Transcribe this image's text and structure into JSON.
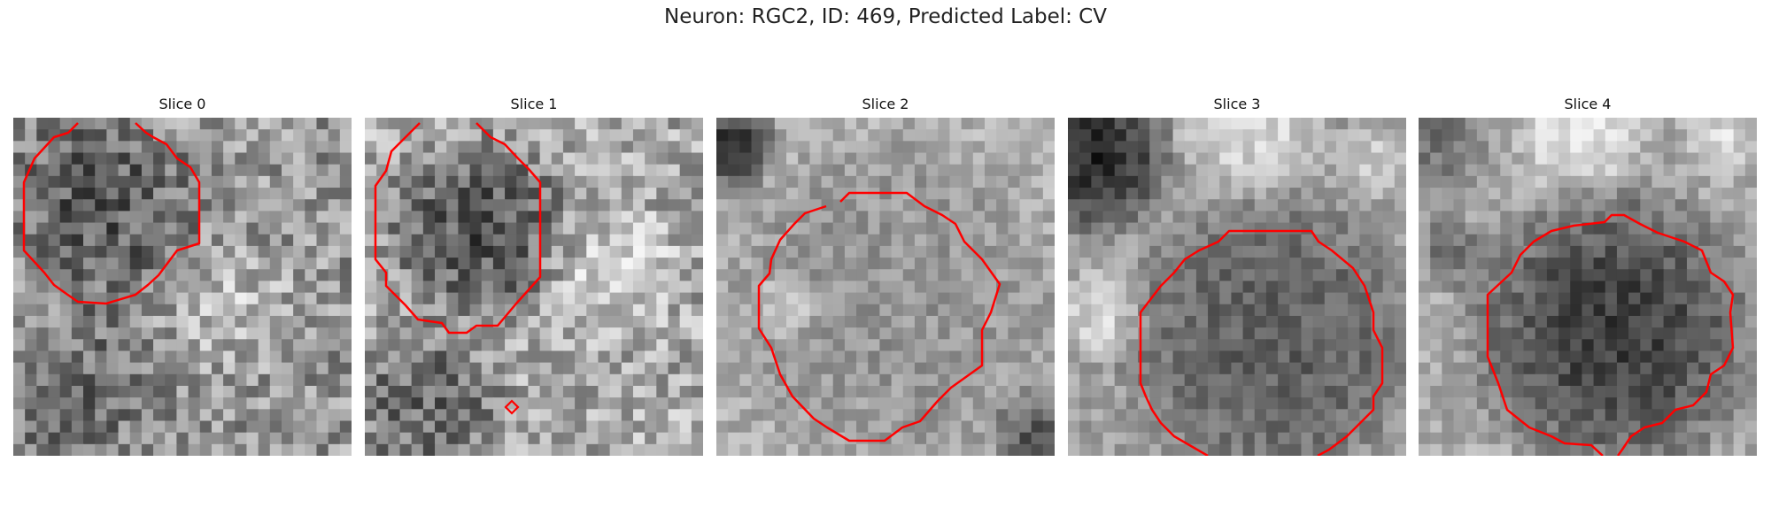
{
  "figure": {
    "title": "Neuron: RGC2, ID: 469, Predicted Label: CV",
    "contour_color": "#ff0000"
  },
  "slices": [
    {
      "title": "Slice 0"
    },
    {
      "title": "Slice 1"
    },
    {
      "title": "Slice 2"
    },
    {
      "title": "Slice 3"
    },
    {
      "title": "Slice 4"
    }
  ]
}
